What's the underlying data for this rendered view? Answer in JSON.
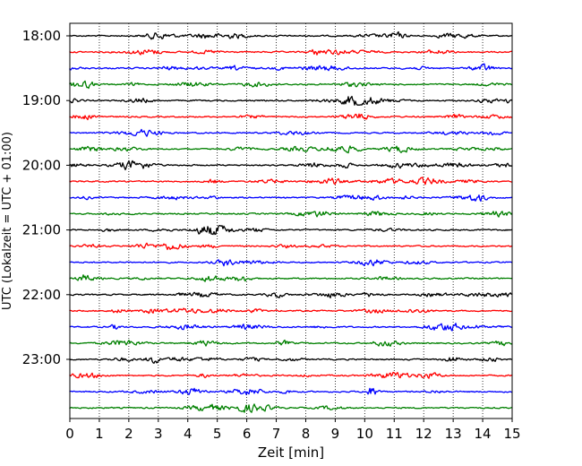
{
  "chart_data": {
    "type": "line",
    "title": "",
    "xlabel": "Zeit  [min]",
    "ylabel": "UTC (Lokalzeit = UTC + 01:00)",
    "xlim": [
      0,
      15
    ],
    "x_ticks": [
      0,
      1,
      2,
      3,
      4,
      5,
      6,
      7,
      8,
      9,
      10,
      11,
      12,
      13,
      14,
      15
    ],
    "x_tick_labels": [
      "0",
      "1",
      "2",
      "3",
      "4",
      "5",
      "6",
      "7",
      "8",
      "9",
      "10",
      "11",
      "12",
      "13",
      "14",
      "15"
    ],
    "y_tick_labels": [
      "18:00",
      "19:00",
      "20:00",
      "21:00",
      "22:00",
      "23:00"
    ],
    "trace_start_times": [
      "18:00",
      "18:15",
      "18:30",
      "18:45",
      "19:00",
      "19:15",
      "19:30",
      "19:45",
      "20:00",
      "20:15",
      "20:30",
      "20:45",
      "21:00",
      "21:15",
      "21:30",
      "21:45",
      "22:00",
      "22:15",
      "22:30",
      "22:45",
      "23:00",
      "23:15",
      "23:30",
      "23:45"
    ],
    "trace_minutes": 15,
    "trace_colors": [
      "#000000",
      "#ff0000",
      "#0000ff",
      "#008000"
    ],
    "grid": {
      "vertical": true,
      "style": "dotted"
    }
  }
}
